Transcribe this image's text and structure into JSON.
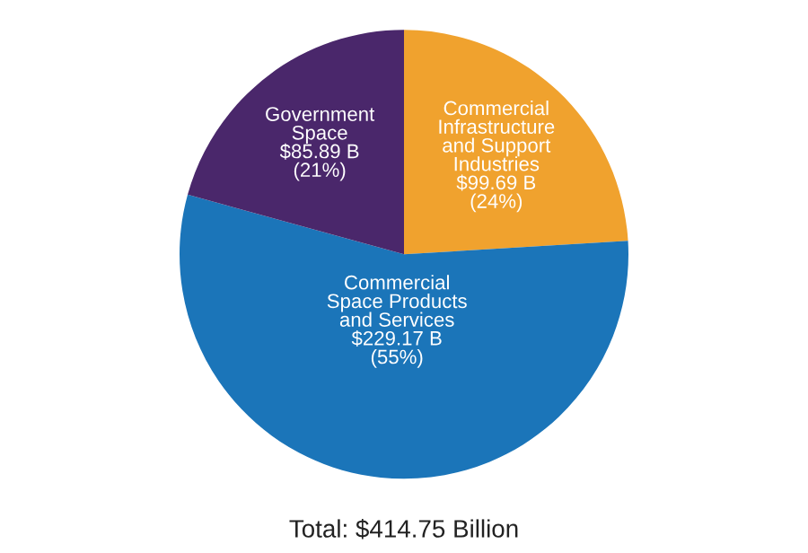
{
  "chart_data": {
    "type": "pie",
    "categories": [
      "Commercial\nInfrastructure\nand Support\nIndustries",
      "Commercial\nSpace Products\nand Services",
      "Government\nSpace"
    ],
    "values": [
      99.69,
      229.17,
      85.89
    ],
    "value_labels": [
      "$99.69 B\n(24%)",
      "$229.17 B\n(55%)",
      "$85.89 B\n(21%)"
    ],
    "colors": [
      "#f0a22e",
      "#1b75b9",
      "#4a276b"
    ],
    "annotations": [
      "Total: $414.75 Billion"
    ],
    "legend": false
  }
}
